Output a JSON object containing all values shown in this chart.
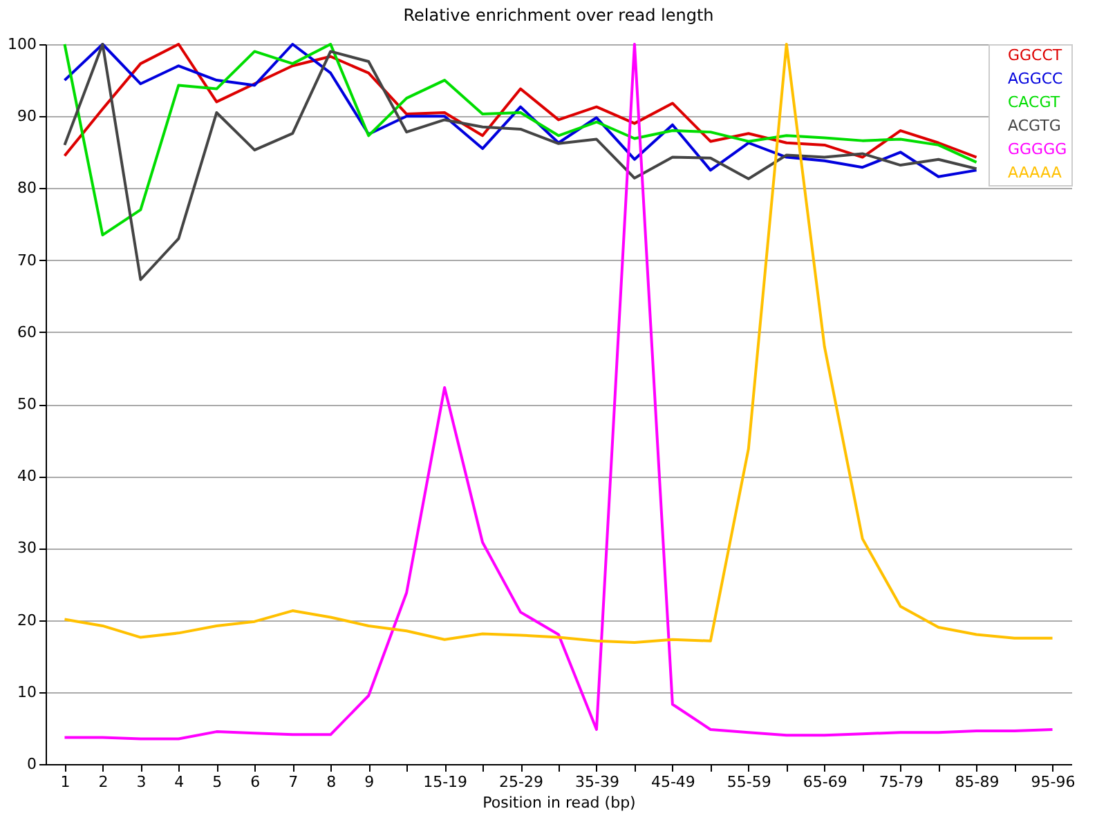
{
  "chart_data": {
    "type": "line",
    "title": "Relative enrichment over read length",
    "xlabel": "Position in read (bp)",
    "categories": [
      "1",
      "2",
      "3",
      "4",
      "5",
      "6",
      "7",
      "8",
      "9",
      null,
      "15-19",
      null,
      "25-29",
      null,
      "35-39",
      null,
      "45-49",
      null,
      "55-59",
      null,
      "65-69",
      null,
      "75-79",
      null,
      "85-89",
      null,
      "95-96"
    ],
    "series": [
      {
        "name": "GGCCT",
        "color": "#dd0000",
        "values": [
          84.5,
          91,
          97.3,
          100,
          92,
          94.5,
          97,
          98.3,
          96,
          90.3,
          90.5,
          87.3,
          93.8,
          89.5,
          91.3,
          89,
          91.8,
          86.5,
          87.6,
          86.3,
          86,
          84.3,
          88,
          86.3,
          84.3,
          null,
          null
        ]
      },
      {
        "name": "AGGCC",
        "color": "#0000dd",
        "values": [
          95,
          100,
          94.5,
          97,
          95,
          94.3,
          100,
          96,
          87.5,
          90,
          90,
          85.5,
          91.3,
          86.3,
          89.8,
          84,
          88.8,
          82.5,
          86.3,
          84.3,
          83.8,
          82.9,
          85,
          81.6,
          82.5,
          null,
          null
        ]
      },
      {
        "name": "CACGT",
        "color": "#00dd00",
        "values": [
          100,
          73.5,
          77,
          94.3,
          93.8,
          99,
          97.3,
          100,
          87.3,
          92.5,
          95,
          90.3,
          90.5,
          87.3,
          89.2,
          86.9,
          88,
          87.8,
          86.5,
          87.3,
          87,
          86.6,
          86.8,
          86,
          83.6,
          null,
          null
        ]
      },
      {
        "name": "ACGTG",
        "color": "#444444",
        "values": [
          86,
          100,
          67.3,
          73,
          90.5,
          85.3,
          87.6,
          99,
          97.6,
          87.8,
          89.5,
          88.5,
          88.2,
          86.2,
          86.8,
          81.4,
          84.3,
          84.2,
          81.3,
          84.6,
          84.3,
          84.8,
          83.2,
          84,
          82.7,
          null,
          null
        ]
      },
      {
        "name": "GGGGG",
        "color": "#ff00ff",
        "values": [
          3.7,
          3.7,
          3.5,
          3.5,
          4.5,
          4.3,
          4.1,
          4.1,
          9.5,
          23.8,
          52.3,
          30.8,
          21.1,
          18,
          4.8,
          100,
          8.3,
          4.8,
          4.4,
          4,
          4,
          4.2,
          4.4,
          4.4,
          4.6,
          4.6,
          4.8
        ]
      },
      {
        "name": "AAAAA",
        "color": "#ffc000",
        "values": [
          20.1,
          19.2,
          17.6,
          18.2,
          19.2,
          19.8,
          21.3,
          20.4,
          19.2,
          18.5,
          17.3,
          18.1,
          17.9,
          17.6,
          17.1,
          16.9,
          17.3,
          17.1,
          43.8,
          100,
          58,
          31.3,
          21.9,
          19,
          18,
          17.5,
          17.5
        ]
      }
    ],
    "ylim": [
      0,
      100
    ],
    "yticks": [
      0,
      10,
      20,
      30,
      40,
      50,
      60,
      70,
      80,
      90,
      100
    ],
    "grid": "y",
    "legend": "top right",
    "marker": "none",
    "line_style": "solid"
  }
}
